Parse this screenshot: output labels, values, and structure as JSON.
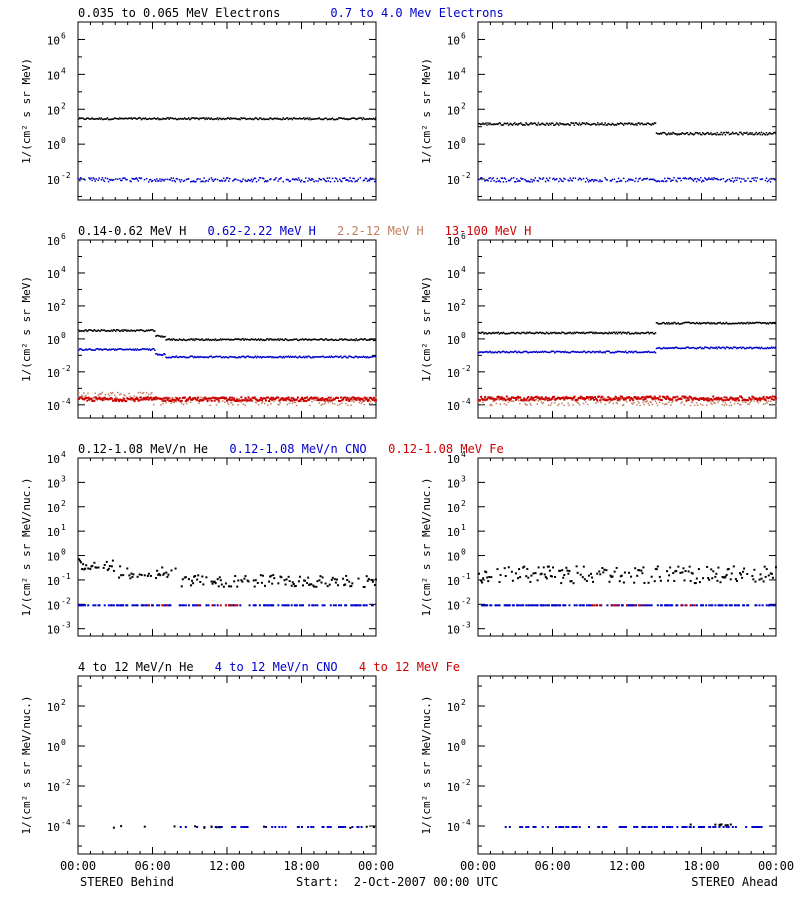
{
  "chart_data": [
    {
      "type": "scatter",
      "row": 0,
      "col": 0,
      "ylabel": "1/(cm² s sr MeV)",
      "ylim_log10": [
        -3.2,
        7
      ],
      "yticks": [
        [
          -2,
          "10",
          "-2"
        ],
        [
          0,
          "10",
          "0"
        ],
        [
          2,
          "10",
          "2"
        ],
        [
          4,
          "10",
          "4"
        ],
        [
          6,
          "10",
          "6"
        ]
      ],
      "legend": [
        {
          "text": "0.035 to 0.065 MeV Electrons",
          "color": "#000000"
        },
        {
          "text": "0.7 to 4.0 Mev Electrons",
          "color": "#0000cc"
        }
      ],
      "series": [
        {
          "color": "#000000",
          "segments": [
            [
              0,
              24,
              1.5
            ]
          ],
          "jitter": 0.05,
          "size": 1.5,
          "density": 1
        },
        {
          "color": "#0000cc",
          "segments": [
            [
              0,
              24,
              -2
            ]
          ],
          "jitter": 0.12,
          "size": 1.5,
          "density": 0.8
        }
      ]
    },
    {
      "type": "scatter",
      "row": 0,
      "col": 1,
      "ylabel": "1/(cm² s sr MeV)",
      "ylim_log10": [
        -3.2,
        7
      ],
      "yticks": [
        [
          -2,
          "10",
          "-2"
        ],
        [
          0,
          "10",
          "0"
        ],
        [
          2,
          "10",
          "2"
        ],
        [
          4,
          "10",
          "4"
        ],
        [
          6,
          "10",
          "6"
        ]
      ],
      "legend": [],
      "series": [
        {
          "color": "#000000",
          "segments": [
            [
              0,
              14.3,
              1.2
            ],
            [
              14.3,
              24,
              0.65
            ]
          ],
          "jitter": 0.07,
          "size": 1.5,
          "density": 1
        },
        {
          "color": "#0000cc",
          "segments": [
            [
              0,
              24,
              -2
            ]
          ],
          "jitter": 0.12,
          "size": 1.5,
          "density": 0.8
        }
      ]
    },
    {
      "type": "scatter",
      "row": 1,
      "col": 0,
      "ylabel": "1/(cm² s sr MeV)",
      "ylim_log10": [
        -4.8,
        6
      ],
      "yticks": [
        [
          -4,
          "10",
          "-4"
        ],
        [
          -2,
          "10",
          "-2"
        ],
        [
          0,
          "10",
          "0"
        ],
        [
          2,
          "10",
          "2"
        ],
        [
          4,
          "10",
          "4"
        ],
        [
          6,
          "10",
          "6"
        ]
      ],
      "legend": [
        {
          "text": "0.14-0.62 MeV H",
          "color": "#000000"
        },
        {
          "text": "0.62-2.22 MeV H",
          "color": "#0000cc"
        },
        {
          "text": "2.2-12 MeV H",
          "color": "#c08060"
        },
        {
          "text": "13-100 MeV H",
          "color": "#cc0000"
        }
      ],
      "series": [
        {
          "color": "#c08060",
          "segments": [
            [
              0,
              6,
              -3.45
            ],
            [
              6,
              24,
              -3.75
            ]
          ],
          "jitter": 0.25,
          "size": 1.5,
          "density": 0.9
        },
        {
          "color": "#cc0000",
          "segments": [
            [
              0,
              24,
              -3.6
            ]
          ],
          "jitter": 0.12,
          "size": 2,
          "density": 1
        },
        {
          "color": "#000000",
          "segments": [
            [
              0,
              6.2,
              0.55
            ],
            [
              6.2,
              7,
              0.2
            ],
            [
              7,
              24,
              0.0
            ]
          ],
          "jitter": 0.05,
          "size": 1.5,
          "density": 1
        },
        {
          "color": "#0000cc",
          "segments": [
            [
              0,
              6.2,
              -0.6
            ],
            [
              6.2,
              7,
              -0.9
            ],
            [
              7,
              24,
              -1.05
            ]
          ],
          "jitter": 0.05,
          "size": 1.5,
          "density": 1
        }
      ]
    },
    {
      "type": "scatter",
      "row": 1,
      "col": 1,
      "ylabel": "1/(cm² s sr MeV)",
      "ylim_log10": [
        -4.8,
        6
      ],
      "yticks": [
        [
          -4,
          "10",
          "-4"
        ],
        [
          -2,
          "10",
          "-2"
        ],
        [
          0,
          "10",
          "0"
        ],
        [
          2,
          "10",
          "2"
        ],
        [
          4,
          "10",
          "4"
        ],
        [
          6,
          "10",
          "6"
        ]
      ],
      "legend": [],
      "series": [
        {
          "color": "#c08060",
          "segments": [
            [
              0,
              24,
              -3.75
            ]
          ],
          "jitter": 0.25,
          "size": 1.5,
          "density": 0.9
        },
        {
          "color": "#cc0000",
          "segments": [
            [
              0,
              24,
              -3.55
            ]
          ],
          "jitter": 0.12,
          "size": 2,
          "density": 1
        },
        {
          "color": "#000000",
          "segments": [
            [
              0,
              14.3,
              0.4
            ],
            [
              14.3,
              24,
              1.0
            ]
          ],
          "jitter": 0.05,
          "size": 1.5,
          "density": 1
        },
        {
          "color": "#0000cc",
          "segments": [
            [
              0,
              14.3,
              -0.75
            ],
            [
              14.3,
              24,
              -0.5
            ]
          ],
          "jitter": 0.05,
          "size": 1.5,
          "density": 1
        }
      ]
    },
    {
      "type": "scatter",
      "row": 2,
      "col": 0,
      "ylabel": "1/(cm² s sr MeV/nuc.)",
      "ylim_log10": [
        -3.3,
        4
      ],
      "yticks": [
        [
          -3,
          "10",
          "-3"
        ],
        [
          -2,
          "10",
          "-2"
        ],
        [
          -1,
          "10",
          "-1"
        ],
        [
          0,
          "10",
          "0"
        ],
        [
          1,
          "10",
          "1"
        ],
        [
          2,
          "10",
          "2"
        ],
        [
          3,
          "10",
          "3"
        ],
        [
          4,
          "10",
          "4"
        ]
      ],
      "legend": [
        {
          "text": "0.12-1.08 MeV/n He",
          "color": "#000000"
        },
        {
          "text": "0.12-1.08 MeV/n CNO",
          "color": "#0000cc"
        },
        {
          "text": "0.12-1.08 MeV Fe",
          "color": "#cc0000"
        }
      ],
      "series": [
        {
          "color": "#000000",
          "segments": [
            [
              0,
              3,
              -0.35
            ],
            [
              3,
              8,
              -0.65
            ],
            [
              8,
              24,
              -1.0
            ]
          ],
          "jitter": 0.25,
          "size": 2,
          "density": 0.55
        },
        {
          "color": "#0000cc",
          "segments": [
            [
              0,
              24,
              -2
            ]
          ],
          "jitter": 0,
          "size": 2,
          "density": 0.45
        },
        {
          "color": "#cc0000",
          "segments": [
            [
              5,
              13,
              -2
            ]
          ],
          "jitter": 0,
          "size": 2,
          "density": 0.15
        }
      ]
    },
    {
      "type": "scatter",
      "row": 2,
      "col": 1,
      "ylabel": "1/(cm² s sr MeV/nuc.)",
      "ylim_log10": [
        -3.3,
        4
      ],
      "yticks": [
        [
          -3,
          "10",
          "-3"
        ],
        [
          -2,
          "10",
          "-2"
        ],
        [
          -1,
          "10",
          "-1"
        ],
        [
          0,
          "10",
          "0"
        ],
        [
          1,
          "10",
          "1"
        ],
        [
          2,
          "10",
          "2"
        ],
        [
          3,
          "10",
          "3"
        ],
        [
          4,
          "10",
          "4"
        ]
      ],
      "legend": [],
      "series": [
        {
          "color": "#000000",
          "segments": [
            [
              0,
              24,
              -0.75
            ]
          ],
          "jitter": 0.35,
          "size": 2,
          "density": 0.6
        },
        {
          "color": "#0000cc",
          "segments": [
            [
              0,
              24,
              -2
            ]
          ],
          "jitter": 0,
          "size": 2,
          "density": 0.45
        },
        {
          "color": "#cc0000",
          "segments": [
            [
              9,
              18,
              -2
            ]
          ],
          "jitter": 0,
          "size": 2,
          "density": 0.1
        }
      ]
    },
    {
      "type": "scatter",
      "row": 3,
      "col": 0,
      "ylabel": "1/(cm² s sr MeV/nuc.)",
      "ylim_log10": [
        -5.4,
        3.5
      ],
      "yticks": [
        [
          -4,
          "10",
          "-4"
        ],
        [
          -2,
          "10",
          "-2"
        ],
        [
          0,
          "10",
          "0"
        ],
        [
          2,
          "10",
          "2"
        ]
      ],
      "legend": [
        {
          "text": "4 to 12 MeV/n He",
          "color": "#000000"
        },
        {
          "text": "4 to 12 MeV/n CNO",
          "color": "#0000cc"
        },
        {
          "text": "4 to 12 MeV Fe",
          "color": "#cc0000"
        }
      ],
      "series": [
        {
          "color": "#0000cc",
          "segments": [
            [
              8,
              23,
              -4
            ]
          ],
          "jitter": 0,
          "size": 2,
          "density": 0.25
        },
        {
          "color": "#000000",
          "segments": [
            [
              0,
              24,
              -4
            ]
          ],
          "jitter": 0.05,
          "size": 2,
          "density": 0.05
        }
      ]
    },
    {
      "type": "scatter",
      "row": 3,
      "col": 1,
      "ylabel": "1/(cm² s sr MeV/nuc.)",
      "ylim_log10": [
        -5.4,
        3.5
      ],
      "yticks": [
        [
          -4,
          "10",
          "-4"
        ],
        [
          -2,
          "10",
          "-2"
        ],
        [
          0,
          "10",
          "0"
        ],
        [
          2,
          "10",
          "2"
        ]
      ],
      "legend": [],
      "series": [
        {
          "color": "#0000cc",
          "segments": [
            [
              2,
              23,
              -4
            ]
          ],
          "jitter": 0,
          "size": 2,
          "density": 0.3
        },
        {
          "color": "#000000",
          "segments": [
            [
              17,
              22,
              -3.9
            ]
          ],
          "jitter": 0.05,
          "size": 2,
          "density": 0.1
        }
      ]
    }
  ],
  "x_tick_labels": [
    "00:00",
    "06:00",
    "12:00",
    "18:00",
    "00:00"
  ],
  "footer": {
    "left": "STEREO Behind",
    "center": "Start:  2-Oct-2007 00:00 UTC",
    "right": "STEREO Ahead"
  }
}
